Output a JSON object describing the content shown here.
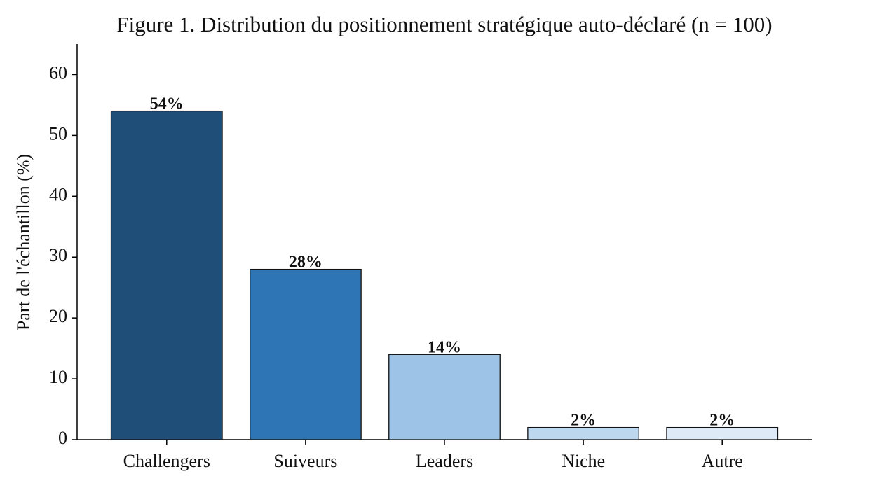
{
  "chart_data": {
    "type": "bar",
    "title": "Figure 1. Distribution du positionnement stratégique auto-déclaré (n = 100)",
    "y_label": "Part de l'échantillon (%)",
    "categories": [
      "Challengers",
      "Suiveurs",
      "Leaders",
      "Niche",
      "Autre"
    ],
    "values": [
      54,
      28,
      14,
      2,
      2
    ],
    "value_labels": [
      "54%",
      "28%",
      "14%",
      "2%",
      "2%"
    ],
    "colors": [
      "#1f4e79",
      "#2e75b6",
      "#9dc3e6",
      "#bdd7ee",
      "#deebf7"
    ],
    "ylim": [
      0,
      65
    ],
    "yticks": [
      0,
      10,
      20,
      30,
      40,
      50,
      60
    ],
    "grid": false
  }
}
